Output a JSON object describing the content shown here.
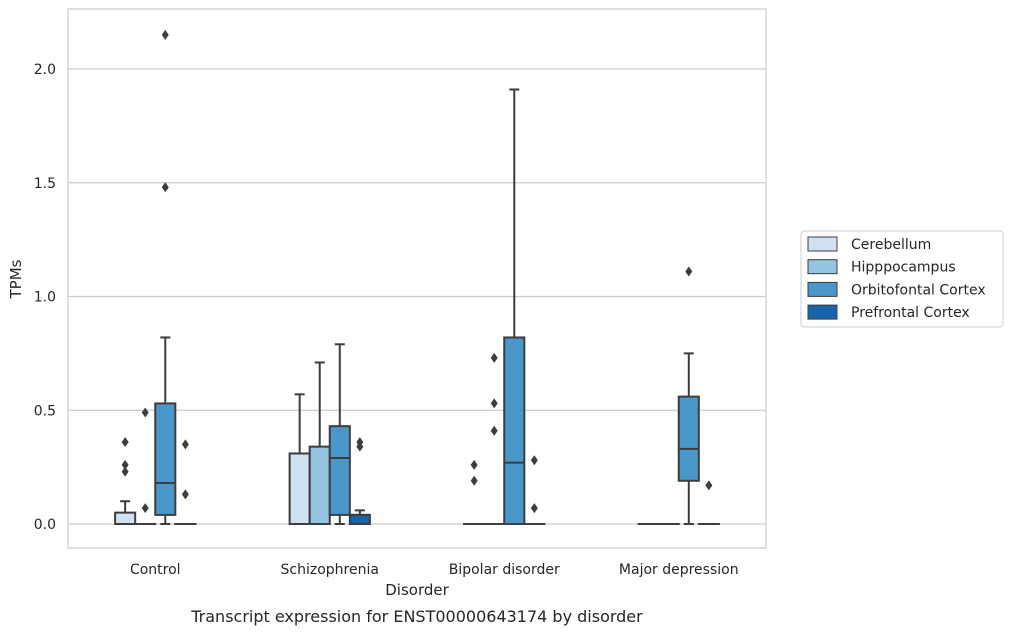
{
  "chart_data": {
    "type": "box",
    "caption": "Transcript expression for ENST00000643174 by disorder",
    "xlabel": "Disorder",
    "ylabel": "TPMs",
    "ylim": [
      -0.1,
      2.27
    ],
    "yticks": [
      "0.0",
      "0.5",
      "1.0",
      "1.5",
      "2.0"
    ],
    "ytick_values": [
      0.0,
      0.5,
      1.0,
      1.5,
      2.0
    ],
    "grid": "horizontal",
    "legend_position": "right",
    "categories": [
      "Control",
      "Schizophrenia",
      "Bipolar disorder",
      "Major depression"
    ],
    "hue_levels": [
      {
        "name": "Cerebellum",
        "color": "#d0e1f2"
      },
      {
        "name": "Hipppocampus",
        "color": "#94c4df"
      },
      {
        "name": "Orbitofontal Cortex",
        "color": "#4a98c9"
      },
      {
        "name": "Prefrontal Cortex",
        "color": "#1764ab"
      }
    ],
    "boxes": [
      {
        "category": "Control",
        "hue": "Cerebellum",
        "q1": 0.0,
        "median": 0.0,
        "q3": 0.05,
        "whisker_low": 0.0,
        "whisker_high": 0.1,
        "outliers": [
          0.23,
          0.26,
          0.36
        ]
      },
      {
        "category": "Control",
        "hue": "Hipppocampus",
        "q1": 0.0,
        "median": 0.0,
        "q3": 0.0,
        "whisker_low": 0.0,
        "whisker_high": 0.0,
        "outliers": [
          0.07,
          0.49
        ]
      },
      {
        "category": "Control",
        "hue": "Orbitofontal Cortex",
        "q1": 0.04,
        "median": 0.18,
        "q3": 0.53,
        "whisker_low": 0.0,
        "whisker_high": 0.82,
        "outliers": [
          1.48,
          2.15
        ]
      },
      {
        "category": "Control",
        "hue": "Prefrontal Cortex",
        "q1": 0.0,
        "median": 0.0,
        "q3": 0.0,
        "whisker_low": 0.0,
        "whisker_high": 0.0,
        "outliers": [
          0.13,
          0.35
        ]
      },
      {
        "category": "Schizophrenia",
        "hue": "Cerebellum",
        "q1": 0.0,
        "median": 0.0,
        "q3": 0.31,
        "whisker_low": 0.0,
        "whisker_high": 0.57,
        "outliers": []
      },
      {
        "category": "Schizophrenia",
        "hue": "Hipppocampus",
        "q1": 0.0,
        "median": 0.0,
        "q3": 0.34,
        "whisker_low": 0.0,
        "whisker_high": 0.71,
        "outliers": []
      },
      {
        "category": "Schizophrenia",
        "hue": "Orbitofontal Cortex",
        "q1": 0.04,
        "median": 0.29,
        "q3": 0.43,
        "whisker_low": 0.0,
        "whisker_high": 0.79,
        "outliers": []
      },
      {
        "category": "Schizophrenia",
        "hue": "Prefrontal Cortex",
        "q1": 0.0,
        "median": 0.04,
        "q3": 0.04,
        "whisker_low": 0.0,
        "whisker_high": 0.06,
        "outliers": [
          0.34,
          0.36
        ]
      },
      {
        "category": "Bipolar disorder",
        "hue": "Cerebellum",
        "q1": 0.0,
        "median": 0.0,
        "q3": 0.0,
        "whisker_low": 0.0,
        "whisker_high": 0.0,
        "outliers": [
          0.19,
          0.26
        ]
      },
      {
        "category": "Bipolar disorder",
        "hue": "Hipppocampus",
        "q1": 0.0,
        "median": 0.0,
        "q3": 0.0,
        "whisker_low": 0.0,
        "whisker_high": 0.0,
        "outliers": [
          0.41,
          0.53,
          0.73
        ]
      },
      {
        "category": "Bipolar disorder",
        "hue": "Orbitofontal Cortex",
        "q1": 0.0,
        "median": 0.27,
        "q3": 0.82,
        "whisker_low": 0.0,
        "whisker_high": 1.91,
        "outliers": []
      },
      {
        "category": "Bipolar disorder",
        "hue": "Prefrontal Cortex",
        "q1": 0.0,
        "median": 0.0,
        "q3": 0.0,
        "whisker_low": 0.0,
        "whisker_high": 0.0,
        "outliers": [
          0.07,
          0.28
        ]
      },
      {
        "category": "Major depression",
        "hue": "Cerebellum",
        "q1": 0.0,
        "median": 0.0,
        "q3": 0.0,
        "whisker_low": 0.0,
        "whisker_high": 0.0,
        "outliers": []
      },
      {
        "category": "Major depression",
        "hue": "Hipppocampus",
        "q1": 0.0,
        "median": 0.0,
        "q3": 0.0,
        "whisker_low": 0.0,
        "whisker_high": 0.0,
        "outliers": []
      },
      {
        "category": "Major depression",
        "hue": "Orbitofontal Cortex",
        "q1": 0.19,
        "median": 0.33,
        "q3": 0.56,
        "whisker_low": 0.0,
        "whisker_high": 0.75,
        "outliers": [
          1.11
        ]
      },
      {
        "category": "Major depression",
        "hue": "Prefrontal Cortex",
        "q1": 0.0,
        "median": 0.0,
        "q3": 0.0,
        "whisker_low": 0.0,
        "whisker_high": 0.0,
        "outliers": [
          0.17
        ]
      }
    ]
  }
}
